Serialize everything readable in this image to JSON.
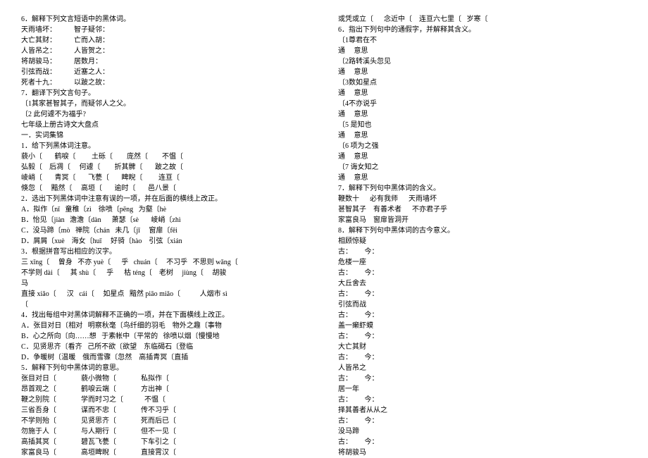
{
  "left": [
    "6．解释下列文言短语中的黑体词。",
    "天雨墙坏：          智子疑邻：",
    "大亡其财：          亡而入胡：",
    "人皆吊之：          人皆贺之：",
    "将胡骏马：          居数月：",
    "引弦而战：          近塞之人：",
    "死者十九：          以跛之故：",
    "7．翻译下列文言句子。",
    "〔1其家甚智其子，而疑邻人之父。",
    "〔2 此何遽不为福乎?",
    "七年级上册古诗文大盘点",
    "一．实词集锦",
    "1．给下列黑体词注意。",
    "藐小〔       鹤唳〔         土砾〔        庞然〔        不愠〔",
    "弘毅〔    后凋〔     何遽〔        折其髀〔       跛之故〔",
    "崚峭〔       青冥〔       飞甍〔       睥睨〔         连亘〔",
    "倏忽〔     黯然〔     高垣〔       逾时〔       邑八景〔",
    "2．选出下列黑体词中注意有误的一项，并在后面的横线上改正。",
    "A．拟作〔nǐ   童稚〔zì    徐喷〔pēng   为壑〔hè",
    "B．怡见〔jiàn   澹澹〔dàn      萧瑟〔sè       崚峭〔zhì",
    "C．没马蹄〔mò   禅院〔chán   未几〔jī     窗扉〔fēi",
    "D．屑屑〔xuè    海女〔huī     好骑〔hào    引弦〔xián",
    "3．根据拼音写出相应的汉字。",
    "三 xǐng〔     曾身   不亦 yuè〔      乎   chuán〔     不习乎   不思则 wǎng〔",
    "不学则 dài〔      其 shù〔      乎      枯 téng〔    老树     jiùng〔     胡骏",
    "马",
    "直接 xiǎo〔      汉   cái〔     如星点   黯然 piāo miǎo〔           人烟市 sì",
    "〔",
    "4．找出每组中对黑体词解释不正确的一项，并在下面横线上改正。",
    "A．张目对日〔相对   明察秋毫〔鸟纤细的羽毛    物外之趣〔事物",
    "B．心之所向〔向……想   于素帐中〔平常的   徐喷以烟〔慢慢地",
    "C．见贤思齐〔看齐   己所不欲〔欲望    东临碣石〔登临",
    "D．争暖树〔温暖    俄而雪骤〔忽然    高插青冥〔直插",
    "5．解释下列句中黑体词的意思。",
    "张目对日〔              藐小微物〔              私拟作〔",
    "昂首观之〔              鹤唳云端〔              方出神〔",
    "鞭之别院〔              学而时习之〔            不愠〔",
    "三省吾身〔              谋而不忠〔              传不习乎〔",
    "不学则殆〔              见贤思齐〔              死而后已〔",
    "勿施于人〔              与人期行〔              但不一见〔",
    "高插其冥〔              碧瓦飞甍〔              下车引之〔",
    "家富良马〔              高垣睥睨〔              直接霄汉〔"
  ],
  "right": [
    "或凭或立〔      念近中〔    连亘六七里〔   岁寒〔",
    "6．指出下列句中的通假字，并解释其含义。",
    "〔1尊君在不",
    "通     意思",
    "〔2路转溪头忽见",
    "通     意思",
    "〔3数如星点",
    "通     意思",
    "〔4不亦说乎",
    "通     意思",
    "〔5 是知也",
    "通     意思",
    "〔6 项为之强",
    "通     意思",
    "〔7 诲女知之",
    "通     意思",
    "7．解释下列句中黑体词的含义。",
    "鞭数十      必有我师      天雨墙坏",
    "甚智其子    有善术者      不亦君子乎",
    "家富良马    窗扉皆洞开",
    "8．解释下列句中黑体词的古今意义。",
    "相顾惊疑",
    "古：       今：",
    "危楼一座",
    "古：       今：",
    "大丘舍去",
    "古：       今：",
    "引弦而战",
    "古：       今：",
    "盖一癞虾蟆",
    "古：       今：",
    "大亡其财",
    "古：       今：",
    "人皆吊之",
    "古：       今：",
    "居一年",
    "古：       今：",
    "择其善者从从之",
    "古：       今：",
    "没马蹄",
    "古：       今：",
    "将胡骏马"
  ]
}
